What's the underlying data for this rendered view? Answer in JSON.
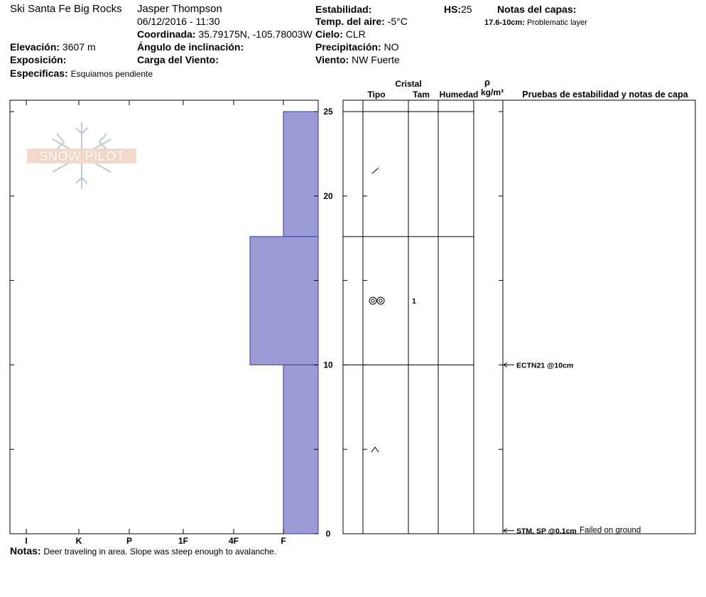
{
  "header": {
    "location": "Ski Santa Fe Big Rocks",
    "observer": "Jasper Thompson",
    "datetime": "06/12/2016 - 11:30",
    "coord_label": "Coordinada:",
    "coord_value": "35.79175N, -105.78003W",
    "elev_label": "Elevación:",
    "elev_value": "3607 m",
    "slope_label": "Ángulo de inclinación:",
    "aspect_label": "Exposición:",
    "wind_load_label": "Carga del Viento:",
    "specifics_label": "Especificas:",
    "specifics_value": "Esquiamos pendiente",
    "stability_label": "Estabilidad:",
    "air_temp_label": "Temp. del aire:",
    "air_temp_value": "-5°C",
    "sky_label": "Cielo:",
    "sky_value": "CLR",
    "precip_label": "Precipitación:",
    "precip_value": "NO",
    "wind_label": "Viento:",
    "wind_value": "NW Fuerte",
    "hs_label": "HS:",
    "hs_value": "25",
    "layer_notes_label": "Notas del capas:",
    "layer_note_range": "17.6-10cm:",
    "layer_note_text": "Problematic layer"
  },
  "columns": {
    "crystal": "Cristal",
    "type": "Tipo",
    "size": "Tam",
    "moisture": "Humedad",
    "rho": "ρ",
    "density_unit": "kg/m³",
    "tests": "Pruebas de estabilidad y notas de capa"
  },
  "logo": {
    "text": "SNOW PILOT"
  },
  "notes": {
    "label": "Notas:",
    "text": "Deer traveling in area. Slope was steep enough to avalanche."
  },
  "chart_data": {
    "type": "bar",
    "title": "",
    "hand_hardness_scale": [
      "I",
      "K",
      "P",
      "1F",
      "4F",
      "F"
    ],
    "y_ticks": [
      0,
      10,
      20,
      25
    ],
    "ylim": [
      0,
      25
    ],
    "bar_color": "#9B9BD6",
    "layers": [
      {
        "top": 25,
        "bottom": 17.6,
        "hardness": "F"
      },
      {
        "top": 17.6,
        "bottom": 10,
        "hardness": "4F-F"
      },
      {
        "top": 10,
        "bottom": 0,
        "hardness": "F"
      }
    ],
    "crystals": [
      {
        "height": 21.5,
        "type_icon": "decomposing-fragments-icon",
        "size": ""
      },
      {
        "height": 13.8,
        "type_icon": "rounded-grains-icon",
        "size": "1"
      },
      {
        "height": 5,
        "type_icon": "faceted-crystal-icon",
        "size": ""
      }
    ],
    "tests": [
      {
        "height": 10,
        "label": "ECTN21 @10cm",
        "note": ""
      },
      {
        "height": 0.1,
        "label": "STM, SP @0.1cm",
        "note": "Failed on ground"
      }
    ]
  }
}
